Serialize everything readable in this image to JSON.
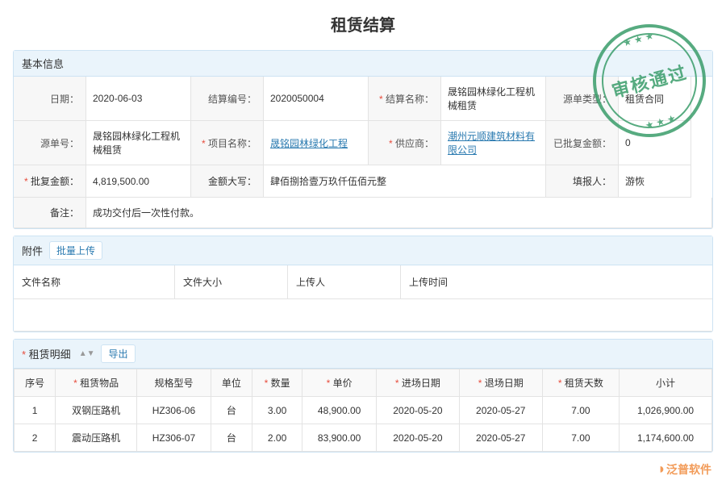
{
  "title": "租赁结算",
  "stamp": "审核通过",
  "basic": {
    "header": "基本信息",
    "labels": {
      "date": "日期：",
      "settleNo": "结算编号：",
      "settleName": "结算名称：",
      "sourceType": "源单类型：",
      "sourceNo": "源单号：",
      "projectName": "项目名称：",
      "supplier": "供应商：",
      "approvedAmt": "已批复金额：",
      "applyAmt": "批复金额：",
      "amtCaps": "金额大写：",
      "reporter": "填报人：",
      "remark": "备注："
    },
    "values": {
      "date": "2020-06-03",
      "settleNo": "2020050004",
      "settleName": "晟铭园林绿化工程机械租赁",
      "sourceType": "租赁合同",
      "sourceNo": "晟铭园林绿化工程机械租赁",
      "projectName": "晟铭园林绿化工程",
      "supplier": "潮州元顺建筑材料有限公司",
      "approvedAmt": "0",
      "applyAmt": "4,819,500.00",
      "amtCaps": "肆佰捌拾壹万玖仟伍佰元整",
      "reporter": "游恢",
      "remark": "成功交付后一次性付款。"
    }
  },
  "attach": {
    "header": "附件",
    "upload": "批量上传",
    "cols": {
      "name": "文件名称",
      "size": "文件大小",
      "uploader": "上传人",
      "time": "上传时间"
    }
  },
  "detail": {
    "header": "租赁明细",
    "export": "导出",
    "cols": {
      "idx": "序号",
      "item": "租赁物品",
      "spec": "规格型号",
      "unit": "单位",
      "qty": "数量",
      "price": "单价",
      "inDate": "进场日期",
      "outDate": "退场日期",
      "days": "租赁天数",
      "subtotal": "小计"
    },
    "rows": [
      {
        "idx": "1",
        "item": "双钢压路机",
        "spec": "HZ306-06",
        "unit": "台",
        "qty": "3.00",
        "price": "48,900.00",
        "inDate": "2020-05-20",
        "outDate": "2020-05-27",
        "days": "7.00",
        "subtotal": "1,026,900.00"
      },
      {
        "idx": "2",
        "item": "震动压路机",
        "spec": "HZ306-07",
        "unit": "台",
        "qty": "2.00",
        "price": "83,900.00",
        "inDate": "2020-05-20",
        "outDate": "2020-05-27",
        "days": "7.00",
        "subtotal": "1,174,600.00"
      }
    ]
  },
  "watermark": "泛普软件"
}
